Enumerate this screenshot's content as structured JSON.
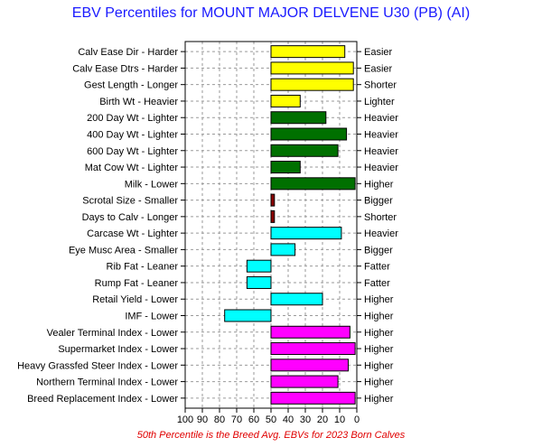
{
  "chart_data": {
    "type": "bar",
    "title": "EBV Percentiles for MOUNT MAJOR DELVENE U30 (PB) (AI)",
    "footnote": "50th Percentile is the Breed Avg. EBVs for 2023 Born Calves",
    "xlim": [
      100,
      0
    ],
    "xticks": [
      "100",
      "90",
      "80",
      "70",
      "60",
      "50",
      "40",
      "30",
      "20",
      "10",
      "0"
    ],
    "reference_percentile": 50,
    "grid": true,
    "colors": {
      "yellow": "#ffff00",
      "green": "#007000",
      "darkred": "#8b0000",
      "cyan": "#00ffff",
      "magenta": "#ff00ff",
      "title": "#1a1aff",
      "footnote": "#e00000"
    },
    "traits": [
      {
        "label": "Calv Ease Dir - Harder",
        "right": "Easier",
        "value": 7,
        "color": "yellow"
      },
      {
        "label": "Calv Ease Dtrs - Harder",
        "right": "Easier",
        "value": 2,
        "color": "yellow"
      },
      {
        "label": "Gest Length - Longer",
        "right": "Shorter",
        "value": 2,
        "color": "yellow"
      },
      {
        "label": "Birth Wt - Heavier",
        "right": "Lighter",
        "value": 33,
        "color": "yellow"
      },
      {
        "label": "200 Day Wt - Lighter",
        "right": "Heavier",
        "value": 18,
        "color": "green"
      },
      {
        "label": "400 Day Wt - Lighter",
        "right": "Heavier",
        "value": 6,
        "color": "green"
      },
      {
        "label": "600 Day Wt - Lighter",
        "right": "Heavier",
        "value": 11,
        "color": "green"
      },
      {
        "label": "Mat Cow Wt - Lighter",
        "right": "Heavier",
        "value": 33,
        "color": "green"
      },
      {
        "label": "Milk - Lower",
        "right": "Higher",
        "value": 1,
        "color": "green"
      },
      {
        "label": "Scrotal Size - Smaller",
        "right": "Bigger",
        "value": 48,
        "color": "darkred"
      },
      {
        "label": "Days to Calv - Longer",
        "right": "Shorter",
        "value": 48,
        "color": "darkred"
      },
      {
        "label": "Carcase Wt - Lighter",
        "right": "Heavier",
        "value": 9,
        "color": "cyan"
      },
      {
        "label": "Eye Musc Area - Smaller",
        "right": "Bigger",
        "value": 36,
        "color": "cyan"
      },
      {
        "label": "Rib Fat - Leaner",
        "right": "Fatter",
        "value": 64,
        "color": "cyan"
      },
      {
        "label": "Rump Fat - Leaner",
        "right": "Fatter",
        "value": 64,
        "color": "cyan"
      },
      {
        "label": "Retail Yield - Lower",
        "right": "Higher",
        "value": 20,
        "color": "cyan"
      },
      {
        "label": "IMF - Lower",
        "right": "Higher",
        "value": 77,
        "color": "cyan"
      },
      {
        "label": "Vealer Terminal Index - Lower",
        "right": "Higher",
        "value": 4,
        "color": "magenta"
      },
      {
        "label": "Supermarket Index - Lower",
        "right": "Higher",
        "value": 1,
        "color": "magenta"
      },
      {
        "label": "Heavy Grassfed Steer Index - Lower",
        "right": "Higher",
        "value": 5,
        "color": "magenta"
      },
      {
        "label": "Northern Terminal Index - Lower",
        "right": "Higher",
        "value": 11,
        "color": "magenta"
      },
      {
        "label": "Breed Replacement Index - Lower",
        "right": "Higher",
        "value": 1,
        "color": "magenta"
      }
    ]
  }
}
